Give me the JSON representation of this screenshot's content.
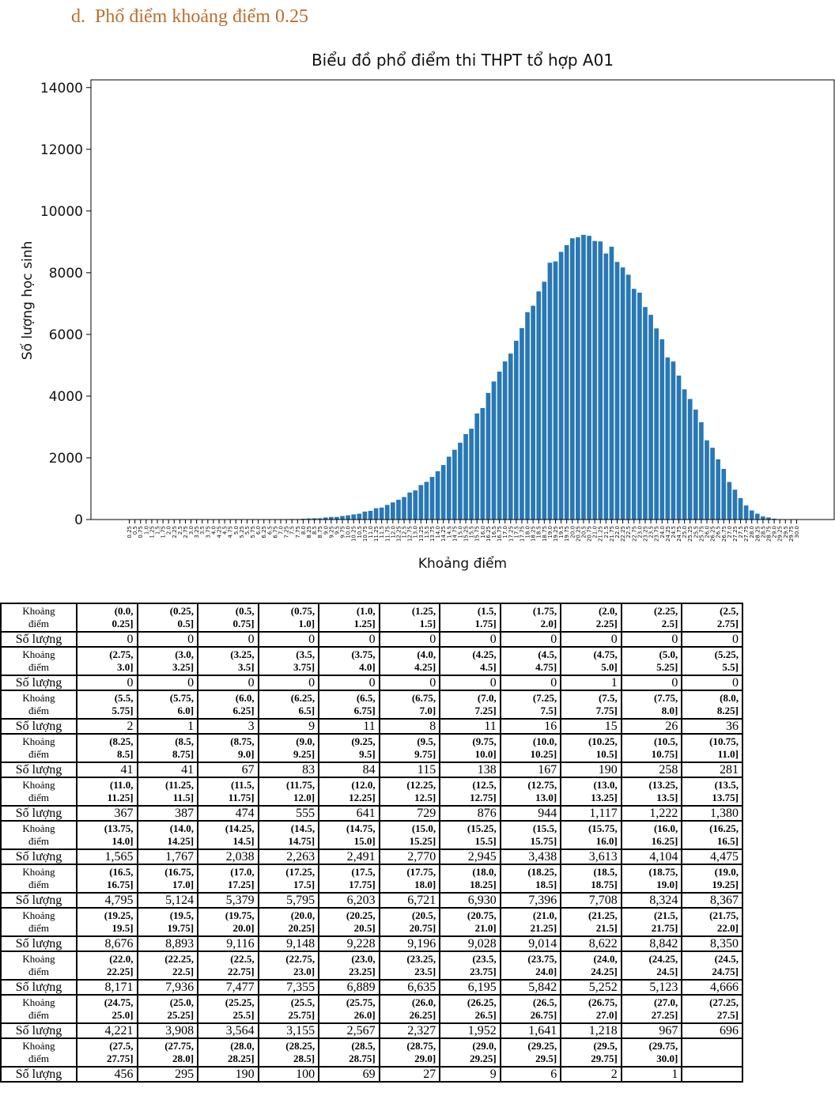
{
  "heading": "d.  Phổ điểm khoảng điểm 0.25",
  "chart_data": {
    "type": "bar",
    "title": "Biểu đồ phổ điểm thi THPT tổ hợp A01",
    "xlabel": "Khoảng điểm",
    "ylabel": "Số lượng học sinh",
    "color": "#2878b5",
    "ylim": [
      0,
      14250
    ],
    "yticks": [
      0,
      2000,
      4000,
      6000,
      8000,
      10000,
      12000,
      14000
    ],
    "categories": [
      "0.25",
      "0.5",
      "0.75",
      "1.0",
      "1.25",
      "1.5",
      "1.75",
      "2.0",
      "2.25",
      "2.5",
      "2.75",
      "3.0",
      "3.25",
      "3.5",
      "3.75",
      "4.0",
      "4.25",
      "4.5",
      "4.75",
      "5.0",
      "5.25",
      "5.5",
      "5.75",
      "6.0",
      "6.25",
      "6.5",
      "6.75",
      "7.0",
      "7.25",
      "7.5",
      "7.75",
      "8.0",
      "8.25",
      "8.5",
      "8.75",
      "9.0",
      "9.25",
      "9.5",
      "9.75",
      "10.0",
      "10.25",
      "10.5",
      "10.75",
      "11.0",
      "11.25",
      "11.5",
      "11.75",
      "12.0",
      "12.25",
      "12.5",
      "12.75",
      "13.0",
      "13.25",
      "13.5",
      "13.75",
      "14.0",
      "14.25",
      "14.5",
      "14.75",
      "15.0",
      "15.25",
      "15.5",
      "15.75",
      "16.0",
      "16.25",
      "16.5",
      "16.75",
      "17.0",
      "17.25",
      "17.5",
      "17.75",
      "18.0",
      "18.25",
      "18.5",
      "18.75",
      "19.0",
      "19.25",
      "19.5",
      "19.75",
      "20.0",
      "20.25",
      "20.5",
      "20.75",
      "21.0",
      "21.25",
      "21.5",
      "21.75",
      "22.0",
      "22.25",
      "22.5",
      "22.75",
      "23.0",
      "23.25",
      "23.5",
      "23.75",
      "24.0",
      "24.25",
      "24.5",
      "24.75",
      "25.0",
      "25.25",
      "25.5",
      "25.75",
      "26.0",
      "26.25",
      "26.5",
      "26.75",
      "27.0",
      "27.25",
      "27.5",
      "27.75",
      "28.0",
      "28.25",
      "28.5",
      "28.75",
      "29.0",
      "29.25",
      "29.5",
      "29.75",
      "30.0"
    ],
    "values": [
      0,
      0,
      0,
      0,
      0,
      0,
      0,
      0,
      0,
      0,
      0,
      0,
      0,
      0,
      0,
      0,
      0,
      0,
      0,
      1,
      0,
      0,
      2,
      1,
      3,
      9,
      11,
      8,
      11,
      16,
      15,
      26,
      36,
      41,
      41,
      67,
      83,
      84,
      115,
      138,
      167,
      190,
      258,
      281,
      367,
      387,
      474,
      555,
      641,
      729,
      876,
      944,
      1117,
      1222,
      1380,
      1565,
      1767,
      2038,
      2263,
      2491,
      2770,
      2945,
      3438,
      3613,
      4104,
      4475,
      4795,
      5124,
      5379,
      5795,
      6203,
      6721,
      6930,
      7396,
      7708,
      8324,
      8367,
      8676,
      8893,
      9116,
      9148,
      9228,
      9196,
      9028,
      9014,
      8622,
      8842,
      8350,
      8171,
      7936,
      7477,
      7355,
      6889,
      6635,
      6195,
      5842,
      5252,
      5123,
      4666,
      4221,
      3908,
      3564,
      3155,
      2567,
      2327,
      1952,
      1641,
      1218,
      967,
      696,
      456,
      295,
      190,
      100,
      69,
      27,
      9,
      6,
      2,
      1
    ]
  },
  "table": {
    "interval_label": "Khoảng điểm",
    "count_label": "Số lượng",
    "intervals": [
      "(0.0, 0.25]",
      "(0.25, 0.5]",
      "(0.5, 0.75]",
      "(0.75, 1.0]",
      "(1.0, 1.25]",
      "(1.25, 1.5]",
      "(1.5, 1.75]",
      "(1.75, 2.0]",
      "(2.0, 2.25]",
      "(2.25, 2.5]",
      "(2.5, 2.75]",
      "(2.75, 3.0]",
      "(3.0, 3.25]",
      "(3.25, 3.5]",
      "(3.5, 3.75]",
      "(3.75, 4.0]",
      "(4.0, 4.25]",
      "(4.25, 4.5]",
      "(4.5, 4.75]",
      "(4.75, 5.0]",
      "(5.0, 5.25]",
      "(5.25, 5.5]",
      "(5.5, 5.75]",
      "(5.75, 6.0]",
      "(6.0, 6.25]",
      "(6.25, 6.5]",
      "(6.5, 6.75]",
      "(6.75, 7.0]",
      "(7.0, 7.25]",
      "(7.25, 7.5]",
      "(7.5, 7.75]",
      "(7.75, 8.0]",
      "(8.0, 8.25]",
      "(8.25, 8.5]",
      "(8.5, 8.75]",
      "(8.75, 9.0]",
      "(9.0, 9.25]",
      "(9.25, 9.5]",
      "(9.5, 9.75]",
      "(9.75, 10.0]",
      "(10.0, 10.25]",
      "(10.25, 10.5]",
      "(10.5, 10.75]",
      "(10.75, 11.0]",
      "(11.0, 11.25]",
      "(11.25, 11.5]",
      "(11.5, 11.75]",
      "(11.75, 12.0]",
      "(12.0, 12.25]",
      "(12.25, 12.5]",
      "(12.5, 12.75]",
      "(12.75, 13.0]",
      "(13.0, 13.25]",
      "(13.25, 13.5]",
      "(13.5, 13.75]",
      "(13.75, 14.0]",
      "(14.0, 14.25]",
      "(14.25, 14.5]",
      "(14.5, 14.75]",
      "(14.75, 15.0]",
      "(15.0, 15.25]",
      "(15.25, 15.5]",
      "(15.5, 15.75]",
      "(15.75, 16.0]",
      "(16.0, 16.25]",
      "(16.25, 16.5]",
      "(16.5, 16.75]",
      "(16.75, 17.0]",
      "(17.0, 17.25]",
      "(17.25, 17.5]",
      "(17.5, 17.75]",
      "(17.75, 18.0]",
      "(18.0, 18.25]",
      "(18.25, 18.5]",
      "(18.5, 18.75]",
      "(18.75, 19.0]",
      "(19.0, 19.25]",
      "(19.25, 19.5]",
      "(19.5, 19.75]",
      "(19.75, 20.0]",
      "(20.0, 20.25]",
      "(20.25, 20.5]",
      "(20.5, 20.75]",
      "(20.75, 21.0]",
      "(21.0, 21.25]",
      "(21.25, 21.5]",
      "(21.5, 21.75]",
      "(21.75, 22.0]",
      "(22.0, 22.25]",
      "(22.25, 22.5]",
      "(22.5, 22.75]",
      "(22.75, 23.0]",
      "(23.0, 23.25]",
      "(23.25, 23.5]",
      "(23.5, 23.75]",
      "(23.75, 24.0]",
      "(24.0, 24.25]",
      "(24.25, 24.5]",
      "(24.5, 24.75]",
      "(24.75, 25.0]",
      "(25.0, 25.25]",
      "(25.25, 25.5]",
      "(25.5, 25.75]",
      "(25.75, 26.0]",
      "(26.0, 26.25]",
      "(26.25, 26.5]",
      "(26.5, 26.75]",
      "(26.75, 27.0]",
      "(27.0, 27.25]",
      "(27.25, 27.5]",
      "(27.5, 27.75]",
      "(27.75, 28.0]",
      "(28.0, 28.25]",
      "(28.25, 28.5]",
      "(28.5, 28.75]",
      "(28.75, 29.0]",
      "(29.0, 29.25]",
      "(29.25, 29.5]",
      "(29.5, 29.75]",
      "(29.75, 30.0]"
    ],
    "counts": [
      0,
      0,
      0,
      0,
      0,
      0,
      0,
      0,
      0,
      0,
      0,
      0,
      0,
      0,
      0,
      0,
      0,
      0,
      0,
      1,
      0,
      0,
      2,
      1,
      3,
      9,
      11,
      8,
      11,
      16,
      15,
      26,
      36,
      41,
      41,
      67,
      83,
      84,
      115,
      138,
      167,
      190,
      258,
      281,
      367,
      387,
      474,
      555,
      641,
      729,
      876,
      944,
      "1,117",
      "1,222",
      "1,380",
      "1,565",
      "1,767",
      "2,038",
      "2,263",
      "2,491",
      "2,770",
      "2,945",
      "3,438",
      "3,613",
      "4,104",
      "4,475",
      "4,795",
      "5,124",
      "5,379",
      "5,795",
      "6,203",
      "6,721",
      "6,930",
      "7,396",
      "7,708",
      "8,324",
      "8,367",
      "8,676",
      "8,893",
      "9,116",
      "9,148",
      "9,228",
      "9,196",
      "9,028",
      "9,014",
      "8,622",
      "8,842",
      "8,350",
      "8,171",
      "7,936",
      "7,477",
      "7,355",
      "6,889",
      "6,635",
      "6,195",
      "5,842",
      "5,252",
      "5,123",
      "4,666",
      "4,221",
      "3,908",
      "3,564",
      "3,155",
      "2,567",
      "2,327",
      "1,952",
      "1,641",
      "1,218",
      967,
      696,
      456,
      295,
      190,
      100,
      69,
      27,
      9,
      6,
      2,
      1
    ]
  }
}
